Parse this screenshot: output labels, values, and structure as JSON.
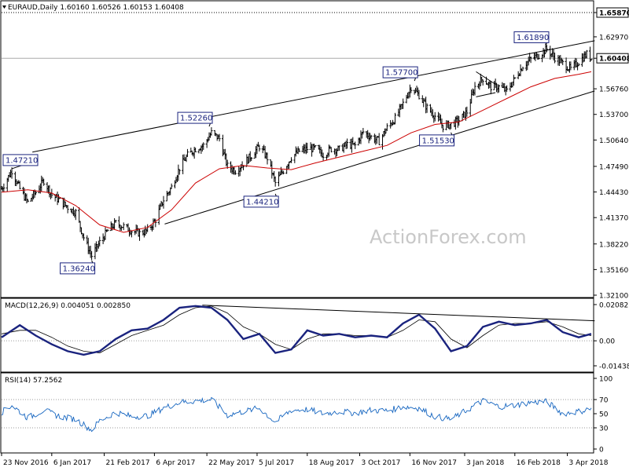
{
  "title": "EURAUD,Daily  1.60160 1.60526 1.60153 1.60408",
  "watermark": "ActionForex.com",
  "colors": {
    "bars": "#000000",
    "ma": "#cc0000",
    "macd": "#1a237e",
    "rsi": "#1565c0",
    "labels": "#1a237e"
  },
  "chart_data": [
    {
      "type": "bar",
      "panel": "price",
      "title": "EURAUD,Daily  1.60160 1.60526 1.60153 1.60408",
      "ylim": [
        1.321,
        1.6587
      ],
      "y_ticks": [
        "1.65870",
        "1.62970",
        "1.60408",
        "1.56760",
        "1.53700",
        "1.50640",
        "1.47490",
        "1.44430",
        "1.41370",
        "1.38220",
        "1.35160",
        "1.32100"
      ],
      "y_tick_values": [
        1.6587,
        1.6297,
        1.6041,
        1.5676,
        1.537,
        1.5064,
        1.4749,
        1.4443,
        1.4137,
        1.3822,
        1.3516,
        1.321
      ],
      "x_ticks": [
        "23 Nov 2016",
        "6 Jan 2017",
        "21 Feb 2017",
        "6 Apr 2017",
        "22 May 2017",
        "5 Jul 2017",
        "18 Aug 2017",
        "3 Oct 2017",
        "16 Nov 2017",
        "3 Jan 2018",
        "16 Feb 2018",
        "3 Apr 2018"
      ],
      "x_range": [
        "2016-11-23",
        "2018-04-24"
      ],
      "last_price": 1.60408,
      "key_levels": [
        {
          "label": "1.65870",
          "value": 1.6587,
          "style": "dotted"
        },
        {
          "label": "1.60408",
          "value": 1.6041,
          "style": "solid"
        }
      ],
      "annotations": [
        {
          "label": "1.47210",
          "date": "2016-12-02",
          "value": 1.4721
        },
        {
          "label": "1.36240",
          "date": "2017-02-10",
          "value": 1.3624
        },
        {
          "label": "1.52260",
          "date": "2017-05-24",
          "value": 1.5226
        },
        {
          "label": "1.44210",
          "date": "2017-07-21",
          "value": 1.4421
        },
        {
          "label": "1.57700",
          "date": "2017-11-20",
          "value": 1.577
        },
        {
          "label": "1.51530",
          "date": "2017-12-22",
          "value": 1.5153
        },
        {
          "label": "1.61890",
          "date": "2018-03-15",
          "value": 1.6189
        }
      ],
      "moving_average": "red line",
      "trend_channel": [
        {
          "from": [
            "2016-12-20",
            1.492
          ],
          "to": [
            "2018-04-27",
            1.625
          ]
        },
        {
          "from": [
            "2017-04-15",
            1.406
          ],
          "to": [
            "2018-04-27",
            1.565
          ]
        }
      ],
      "triangle": [
        [
          [
            "2018-01-13",
            1.588
          ],
          [
            "2018-01-30",
            1.573
          ]
        ],
        [
          [
            "2018-01-13",
            1.558
          ],
          [
            "2018-01-30",
            1.563
          ]
        ]
      ],
      "closes": [
        [
          "2016-11-23",
          1.448
        ],
        [
          "2016-12-02",
          1.47
        ],
        [
          "2016-12-09",
          1.448
        ],
        [
          "2016-12-16",
          1.432
        ],
        [
          "2016-12-23",
          1.444
        ],
        [
          "2016-12-30",
          1.458
        ],
        [
          "2017-01-06",
          1.441
        ],
        [
          "2017-01-13",
          1.434
        ],
        [
          "2017-01-20",
          1.426
        ],
        [
          "2017-01-27",
          1.42
        ],
        [
          "2017-02-03",
          1.39
        ],
        [
          "2017-02-10",
          1.368
        ],
        [
          "2017-02-17",
          1.384
        ],
        [
          "2017-02-24",
          1.398
        ],
        [
          "2017-03-03",
          1.407
        ],
        [
          "2017-03-10",
          1.403
        ],
        [
          "2017-03-17",
          1.398
        ],
        [
          "2017-03-24",
          1.395
        ],
        [
          "2017-03-31",
          1.398
        ],
        [
          "2017-04-07",
          1.411
        ],
        [
          "2017-04-14",
          1.435
        ],
        [
          "2017-04-21",
          1.45
        ],
        [
          "2017-04-28",
          1.473
        ],
        [
          "2017-05-05",
          1.488
        ],
        [
          "2017-05-12",
          1.496
        ],
        [
          "2017-05-19",
          1.5
        ],
        [
          "2017-05-26",
          1.515
        ],
        [
          "2017-06-02",
          1.508
        ],
        [
          "2017-06-09",
          1.475
        ],
        [
          "2017-06-16",
          1.47
        ],
        [
          "2017-06-23",
          1.478
        ],
        [
          "2017-06-30",
          1.488
        ],
        [
          "2017-07-07",
          1.499
        ],
        [
          "2017-07-14",
          1.485
        ],
        [
          "2017-07-21",
          1.455
        ],
        [
          "2017-07-28",
          1.47
        ],
        [
          "2017-08-04",
          1.486
        ],
        [
          "2017-08-11",
          1.493
        ],
        [
          "2017-08-18",
          1.496
        ],
        [
          "2017-08-25",
          1.496
        ],
        [
          "2017-09-01",
          1.489
        ],
        [
          "2017-09-08",
          1.496
        ],
        [
          "2017-09-15",
          1.495
        ],
        [
          "2017-09-22",
          1.501
        ],
        [
          "2017-09-29",
          1.5
        ],
        [
          "2017-10-06",
          1.516
        ],
        [
          "2017-10-13",
          1.51
        ],
        [
          "2017-10-20",
          1.505
        ],
        [
          "2017-10-27",
          1.521
        ],
        [
          "2017-11-03",
          1.532
        ],
        [
          "2017-11-10",
          1.55
        ],
        [
          "2017-11-17",
          1.57
        ],
        [
          "2017-11-24",
          1.56
        ],
        [
          "2017-12-01",
          1.545
        ],
        [
          "2017-12-08",
          1.535
        ],
        [
          "2017-12-15",
          1.523
        ],
        [
          "2017-12-22",
          1.525
        ],
        [
          "2017-12-29",
          1.53
        ],
        [
          "2018-01-05",
          1.54
        ],
        [
          "2018-01-12",
          1.57
        ],
        [
          "2018-01-19",
          1.58
        ],
        [
          "2018-01-26",
          1.57
        ],
        [
          "2018-02-02",
          1.57
        ],
        [
          "2018-02-09",
          1.565
        ],
        [
          "2018-02-16",
          1.58
        ],
        [
          "2018-02-23",
          1.595
        ],
        [
          "2018-03-02",
          1.603
        ],
        [
          "2018-03-09",
          1.608
        ],
        [
          "2018-03-16",
          1.615
        ],
        [
          "2018-03-23",
          1.605
        ],
        [
          "2018-03-30",
          1.598
        ],
        [
          "2018-04-06",
          1.591
        ],
        [
          "2018-04-13",
          1.6
        ],
        [
          "2018-04-20",
          1.609
        ],
        [
          "2018-04-24",
          1.6041
        ]
      ],
      "ma_values": [
        [
          "2016-11-23",
          1.444
        ],
        [
          "2016-12-16",
          1.447
        ],
        [
          "2017-01-06",
          1.443
        ],
        [
          "2017-01-27",
          1.428
        ],
        [
          "2017-02-17",
          1.405
        ],
        [
          "2017-03-10",
          1.396
        ],
        [
          "2017-03-31",
          1.402
        ],
        [
          "2017-04-21",
          1.423
        ],
        [
          "2017-05-12",
          1.455
        ],
        [
          "2017-06-02",
          1.472
        ],
        [
          "2017-06-23",
          1.476
        ],
        [
          "2017-07-14",
          1.473
        ],
        [
          "2017-08-04",
          1.471
        ],
        [
          "2017-08-25",
          1.479
        ],
        [
          "2017-09-15",
          1.486
        ],
        [
          "2017-10-06",
          1.493
        ],
        [
          "2017-10-27",
          1.5
        ],
        [
          "2017-11-17",
          1.515
        ],
        [
          "2017-12-08",
          1.525
        ],
        [
          "2017-12-29",
          1.528
        ],
        [
          "2018-01-19",
          1.542
        ],
        [
          "2018-02-09",
          1.556
        ],
        [
          "2018-03-02",
          1.57
        ],
        [
          "2018-03-23",
          1.58
        ],
        [
          "2018-04-13",
          1.585
        ],
        [
          "2018-04-24",
          1.588
        ]
      ]
    },
    {
      "type": "line",
      "panel": "macd",
      "title": "MACD(12,26,9) 0.004051 0.002850",
      "ylim": [
        -0.01438,
        0.02082
      ],
      "y_ticks": [
        "0.020827",
        "0.00",
        "-0.014386"
      ],
      "y_tick_values": [
        0.020827,
        0.0,
        -0.014386
      ],
      "series": [
        {
          "values": [
            [
              "2016-11-23",
              0.002
            ],
            [
              "2016-12-09",
              0.009
            ],
            [
              "2016-12-23",
              0.003
            ],
            [
              "2017-01-06",
              -0.002
            ],
            [
              "2017-01-20",
              -0.006
            ],
            [
              "2017-02-03",
              -0.008
            ],
            [
              "2017-02-17",
              -0.006
            ],
            [
              "2017-03-03",
              0.001
            ],
            [
              "2017-03-17",
              0.006
            ],
            [
              "2017-03-31",
              0.007
            ],
            [
              "2017-04-14",
              0.012
            ],
            [
              "2017-04-28",
              0.019
            ],
            [
              "2017-05-12",
              0.02
            ],
            [
              "2017-05-26",
              0.019
            ],
            [
              "2017-06-09",
              0.012
            ],
            [
              "2017-06-23",
              0.001
            ],
            [
              "2017-07-07",
              0.004
            ],
            [
              "2017-07-21",
              -0.007
            ],
            [
              "2017-08-04",
              -0.005
            ],
            [
              "2017-08-18",
              0.006
            ],
            [
              "2017-09-01",
              0.003
            ],
            [
              "2017-09-15",
              0.004
            ],
            [
              "2017-09-29",
              0.002
            ],
            [
              "2017-10-13",
              0.003
            ],
            [
              "2017-10-27",
              0.002
            ],
            [
              "2017-11-10",
              0.01
            ],
            [
              "2017-11-24",
              0.015
            ],
            [
              "2017-12-08",
              0.007
            ],
            [
              "2017-12-22",
              -0.006
            ],
            [
              "2018-01-05",
              -0.003
            ],
            [
              "2018-01-19",
              0.008
            ],
            [
              "2018-02-02",
              0.011
            ],
            [
              "2018-02-16",
              0.009
            ],
            [
              "2018-03-02",
              0.01
            ],
            [
              "2018-03-16",
              0.012
            ],
            [
              "2018-03-30",
              0.005
            ],
            [
              "2018-04-13",
              0.002
            ],
            [
              "2018-04-24",
              0.004
            ]
          ]
        },
        {
          "values": [
            [
              "2016-11-23",
              0.004
            ],
            [
              "2016-12-09",
              0.006
            ],
            [
              "2016-12-23",
              0.006
            ],
            [
              "2017-01-06",
              0.002
            ],
            [
              "2017-01-20",
              -0.003
            ],
            [
              "2017-02-03",
              -0.006
            ],
            [
              "2017-02-17",
              -0.007
            ],
            [
              "2017-03-03",
              -0.002
            ],
            [
              "2017-03-17",
              0.003
            ],
            [
              "2017-03-31",
              0.006
            ],
            [
              "2017-04-14",
              0.009
            ],
            [
              "2017-04-28",
              0.015
            ],
            [
              "2017-05-12",
              0.019
            ],
            [
              "2017-05-26",
              0.02
            ],
            [
              "2017-06-09",
              0.016
            ],
            [
              "2017-06-23",
              0.008
            ],
            [
              "2017-07-07",
              0.004
            ],
            [
              "2017-07-21",
              -0.002
            ],
            [
              "2017-08-04",
              -0.005
            ],
            [
              "2017-08-18",
              0.001
            ],
            [
              "2017-09-01",
              0.004
            ],
            [
              "2017-09-15",
              0.004
            ],
            [
              "2017-09-29",
              0.003
            ],
            [
              "2017-10-13",
              0.003
            ],
            [
              "2017-10-27",
              0.002
            ],
            [
              "2017-11-10",
              0.006
            ],
            [
              "2017-11-24",
              0.012
            ],
            [
              "2017-12-08",
              0.011
            ],
            [
              "2017-12-22",
              0.001
            ],
            [
              "2018-01-05",
              -0.004
            ],
            [
              "2018-01-19",
              0.003
            ],
            [
              "2018-02-02",
              0.009
            ],
            [
              "2018-02-16",
              0.01
            ],
            [
              "2018-03-02",
              0.01
            ],
            [
              "2018-03-16",
              0.011
            ],
            [
              "2018-03-30",
              0.008
            ],
            [
              "2018-04-13",
              0.004
            ],
            [
              "2018-04-24",
              0.003
            ]
          ]
        }
      ],
      "trendline": {
        "from": [
          "2017-05-18",
          0.0205
        ],
        "to": [
          "2018-04-27",
          0.0115
        ]
      }
    },
    {
      "type": "line",
      "panel": "rsi",
      "title": "RSI(14) 57.2562",
      "ylim": [
        0,
        100
      ],
      "y_ticks": [
        "100",
        "70",
        "50",
        "30",
        "0"
      ],
      "y_tick_values": [
        100,
        70,
        50,
        30,
        0
      ],
      "levels": [
        70,
        30
      ],
      "series": [
        {
          "values": [
            [
              "2016-11-23",
              52
            ],
            [
              "2016-12-02",
              62
            ],
            [
              "2016-12-16",
              44
            ],
            [
              "2016-12-30",
              55
            ],
            [
              "2017-01-13",
              46
            ],
            [
              "2017-01-27",
              42
            ],
            [
              "2017-02-10",
              27
            ],
            [
              "2017-02-17",
              40
            ],
            [
              "2017-03-03",
              52
            ],
            [
              "2017-03-17",
              46
            ],
            [
              "2017-03-31",
              47
            ],
            [
              "2017-04-14",
              58
            ],
            [
              "2017-04-28",
              66
            ],
            [
              "2017-05-12",
              68
            ],
            [
              "2017-05-26",
              70
            ],
            [
              "2017-06-09",
              48
            ],
            [
              "2017-06-23",
              53
            ],
            [
              "2017-07-07",
              58
            ],
            [
              "2017-07-21",
              38
            ],
            [
              "2017-08-04",
              55
            ],
            [
              "2017-08-18",
              56
            ],
            [
              "2017-09-01",
              50
            ],
            [
              "2017-09-15",
              53
            ],
            [
              "2017-09-29",
              51
            ],
            [
              "2017-10-13",
              55
            ],
            [
              "2017-10-27",
              54
            ],
            [
              "2017-11-10",
              60
            ],
            [
              "2017-11-24",
              58
            ],
            [
              "2017-12-08",
              46
            ],
            [
              "2017-12-22",
              42
            ],
            [
              "2018-01-05",
              55
            ],
            [
              "2018-01-19",
              68
            ],
            [
              "2018-02-02",
              60
            ],
            [
              "2018-02-16",
              62
            ],
            [
              "2018-03-02",
              66
            ],
            [
              "2018-03-16",
              67
            ],
            [
              "2018-03-30",
              50
            ],
            [
              "2018-04-13",
              53
            ],
            [
              "2018-04-24",
              57.2562
            ]
          ]
        }
      ]
    }
  ]
}
